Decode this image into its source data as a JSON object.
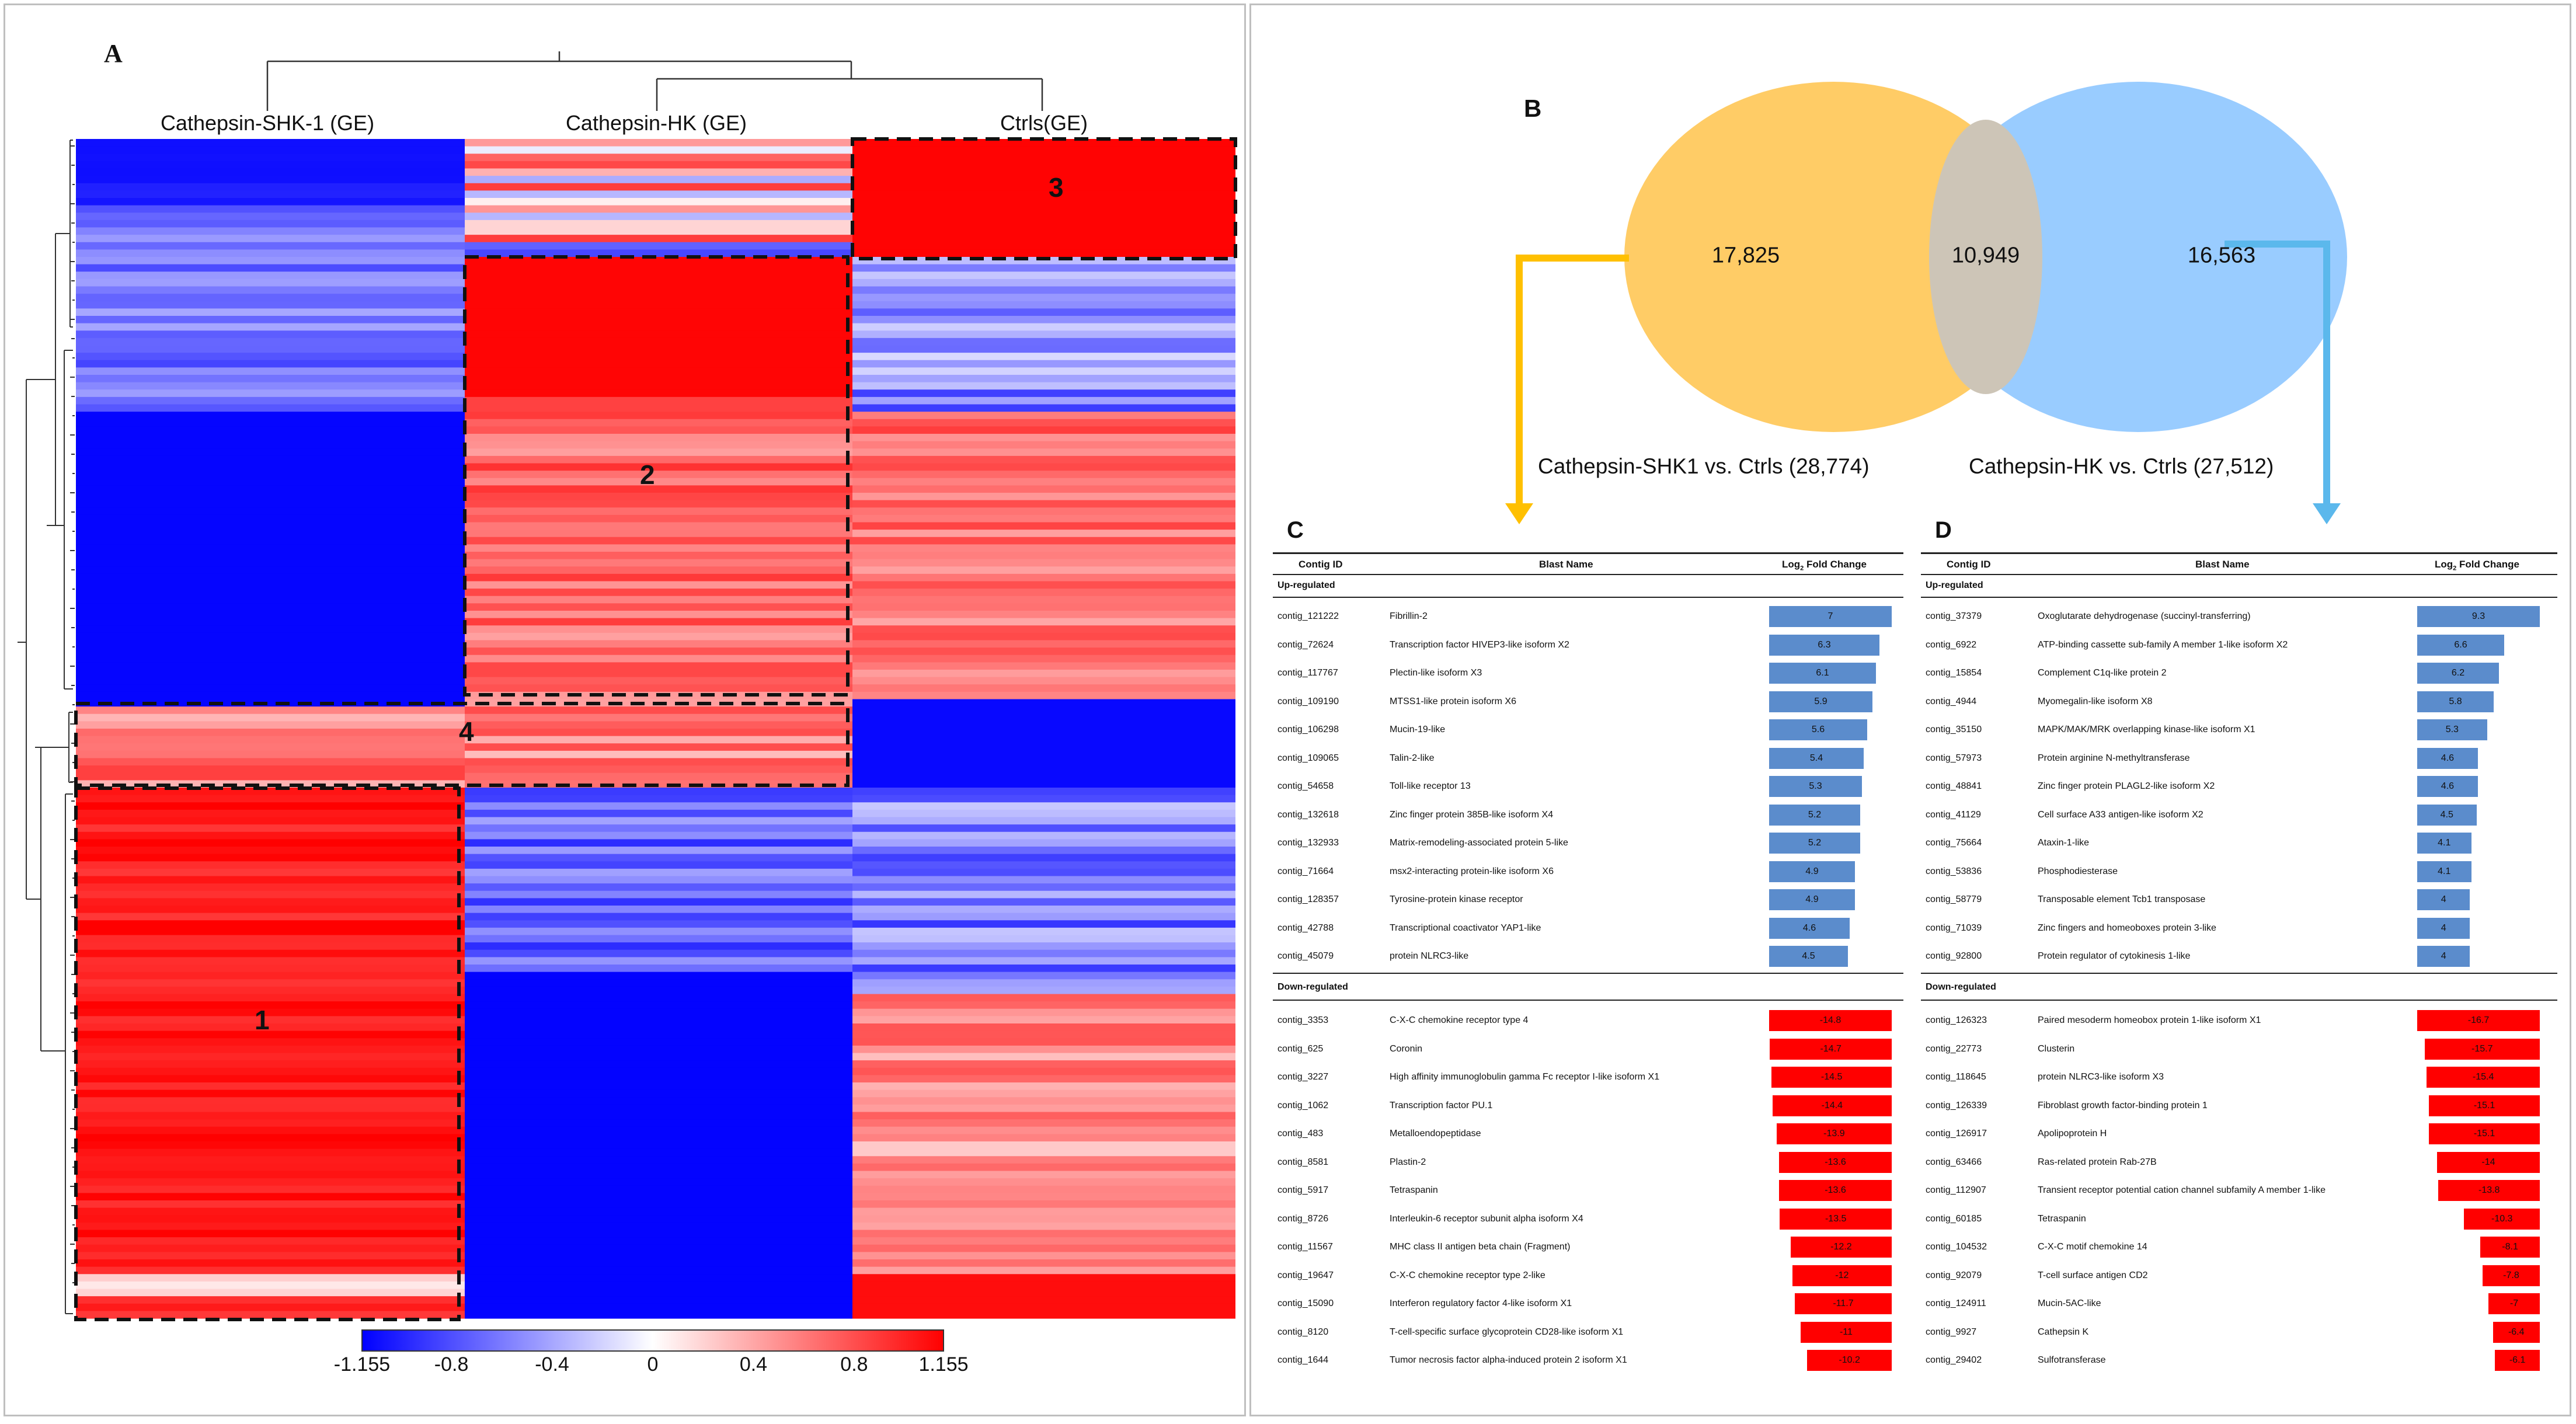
{
  "panel_a": {
    "letter": "A",
    "columns": [
      "Cathepsin-SHK-1 (GE)",
      "Cathepsin-HK (GE)",
      "Ctrls(GE)"
    ],
    "cluster_labels": [
      "1",
      "2",
      "3",
      "4"
    ],
    "colorbar": {
      "ticks": [
        "-1.155",
        "-0.8",
        "-0.4",
        "0",
        "0.4",
        "0.8",
        "1.155"
      ],
      "min": -1.155,
      "max": 1.155,
      "colors": {
        "low": "#0000ff",
        "mid": "#ffffff",
        "high": "#ff0000"
      }
    }
  },
  "panel_b": {
    "letter": "B",
    "left_only": "17,825",
    "overlap": "10,949",
    "right_only": "16,563",
    "left_caption": "Cathepsin-SHK1 vs. Ctrls (28,774)",
    "right_caption": "Cathepsin-HK vs. Ctrls (27,512)",
    "colors": {
      "left": "#ffcc66",
      "right": "#99ccff",
      "overlap": "#cdc5b7",
      "left_arrow": "#ffc000",
      "right_arrow": "#5bb8ec"
    }
  },
  "table_c": {
    "letter": "C",
    "headers": {
      "id": "Contig ID",
      "name": "Blast Name",
      "fc": "Log",
      "fc_sub": "2",
      "fc_rest": " Fold Change"
    },
    "up_label": "Up-regulated",
    "down_label": "Down-regulated",
    "up": [
      {
        "id": "contig_121222",
        "name": "Fibrillin-2",
        "fc": "7"
      },
      {
        "id": "contig_72624",
        "name": "Transcription factor HIVEP3-like isoform X2",
        "fc": "6.3"
      },
      {
        "id": "contig_117767",
        "name": "Plectin-like isoform X3",
        "fc": "6.1"
      },
      {
        "id": "contig_109190",
        "name": "MTSS1-like protein isoform X6",
        "fc": "5.9"
      },
      {
        "id": "contig_106298",
        "name": "Mucin-19-like",
        "fc": "5.6"
      },
      {
        "id": "contig_109065",
        "name": "Talin-2-like",
        "fc": "5.4"
      },
      {
        "id": "contig_54658",
        "name": "Toll-like receptor 13",
        "fc": "5.3"
      },
      {
        "id": "contig_132618",
        "name": "Zinc finger protein 385B-like isoform X4",
        "fc": "5.2"
      },
      {
        "id": "contig_132933",
        "name": "Matrix-remodeling-associated protein 5-like",
        "fc": "5.2"
      },
      {
        "id": "contig_71664",
        "name": "msx2-interacting protein-like isoform X6",
        "fc": "4.9"
      },
      {
        "id": "contig_128357",
        "name": "Tyrosine-protein kinase receptor",
        "fc": "4.9"
      },
      {
        "id": "contig_42788",
        "name": "Transcriptional coactivator YAP1-like",
        "fc": "4.6"
      },
      {
        "id": "contig_45079",
        "name": "protein NLRC3-like",
        "fc": "4.5"
      }
    ],
    "down": [
      {
        "id": "contig_3353",
        "name": "C-X-C chemokine receptor type 4",
        "fc": "-14.8"
      },
      {
        "id": "contig_625",
        "name": "Coronin",
        "fc": "-14.7"
      },
      {
        "id": "contig_3227",
        "name": "High affinity immunoglobulin gamma Fc receptor I-like isoform X1",
        "fc": "-14.5"
      },
      {
        "id": "contig_1062",
        "name": "Transcription factor PU.1",
        "fc": "-14.4"
      },
      {
        "id": "contig_483",
        "name": "Metalloendopeptidase",
        "fc": "-13.9"
      },
      {
        "id": "contig_8581",
        "name": "Plastin-2",
        "fc": "-13.6"
      },
      {
        "id": "contig_5917",
        "name": "Tetraspanin",
        "fc": "-13.6"
      },
      {
        "id": "contig_8726",
        "name": "Interleukin-6 receptor subunit alpha isoform X4",
        "fc": "-13.5"
      },
      {
        "id": "contig_11567",
        "name": "MHC class II antigen beta chain (Fragment)",
        "fc": "-12.2"
      },
      {
        "id": "contig_19647",
        "name": "C-X-C chemokine receptor type 2-like",
        "fc": "-12"
      },
      {
        "id": "contig_15090",
        "name": "Interferon regulatory factor 4-like isoform X1",
        "fc": "-11.7"
      },
      {
        "id": "contig_8120",
        "name": "T-cell-specific surface glycoprotein CD28-like isoform X1",
        "fc": "-11"
      },
      {
        "id": "contig_1644",
        "name": "Tumor necrosis factor alpha-induced protein 2 isoform X1",
        "fc": "-10.2"
      }
    ]
  },
  "table_d": {
    "letter": "D",
    "headers": {
      "id": "Contig ID",
      "name": "Blast Name",
      "fc": "Log",
      "fc_sub": "2",
      "fc_rest": " Fold Change"
    },
    "up_label": "Up-regulated",
    "down_label": "Down-regulated",
    "up": [
      {
        "id": "contig_37379",
        "name": "Oxoglutarate dehydrogenase (succinyl-transferring)",
        "fc": "9.3"
      },
      {
        "id": "contig_6922",
        "name": "ATP-binding cassette sub-family A member 1-like isoform X2",
        "fc": "6.6"
      },
      {
        "id": "contig_15854",
        "name": "Complement C1q-like protein 2",
        "fc": "6.2"
      },
      {
        "id": "contig_4944",
        "name": "Myomegalin-like isoform X8",
        "fc": "5.8"
      },
      {
        "id": "contig_35150",
        "name": "MAPK/MAK/MRK overlapping kinase-like isoform X1",
        "fc": "5.3"
      },
      {
        "id": "contig_57973",
        "name": "Protein arginine N-methyltransferase",
        "fc": "4.6"
      },
      {
        "id": "contig_48841",
        "name": "Zinc finger protein PLAGL2-like isoform X2",
        "fc": "4.6"
      },
      {
        "id": "contig_41129",
        "name": "Cell surface A33 antigen-like isoform X2",
        "fc": "4.5"
      },
      {
        "id": "contig_75664",
        "name": "Ataxin-1-like",
        "fc": "4.1"
      },
      {
        "id": "contig_53836",
        "name": "Phosphodiesterase",
        "fc": "4.1"
      },
      {
        "id": "contig_58779",
        "name": "Transposable element Tcb1 transposase",
        "fc": "4"
      },
      {
        "id": "contig_71039",
        "name": "Zinc fingers and homeoboxes protein 3-like",
        "fc": "4"
      },
      {
        "id": "contig_92800",
        "name": "Protein regulator of cytokinesis 1-like",
        "fc": "4"
      }
    ],
    "down": [
      {
        "id": "contig_126323",
        "name": "Paired mesoderm homeobox protein 1-like isoform X1",
        "fc": "-16.7"
      },
      {
        "id": "contig_22773",
        "name": "Clusterin",
        "fc": "-15.7"
      },
      {
        "id": "contig_118645",
        "name": "protein NLRC3-like isoform X3",
        "fc": "-15.4"
      },
      {
        "id": "contig_126339",
        "name": "Fibroblast growth factor-binding protein 1",
        "fc": "-15.1"
      },
      {
        "id": "contig_126917",
        "name": "Apolipoprotein H",
        "fc": "-15.1"
      },
      {
        "id": "contig_63466",
        "name": "Ras-related protein Rab-27B",
        "fc": "-14"
      },
      {
        "id": "contig_112907",
        "name": "Transient receptor potential cation channel subfamily A member 1-like",
        "fc": "-13.8"
      },
      {
        "id": "contig_60185",
        "name": "Tetraspanin",
        "fc": "-10.3"
      },
      {
        "id": "contig_104532",
        "name": "C-X-C motif chemokine 14",
        "fc": "-8.1"
      },
      {
        "id": "contig_92079",
        "name": "T-cell surface antigen CD2",
        "fc": "-7.8"
      },
      {
        "id": "contig_124911",
        "name": "Mucin-5AC-like",
        "fc": "-7"
      },
      {
        "id": "contig_9927",
        "name": "Cathepsin K",
        "fc": "-6.4"
      },
      {
        "id": "contig_29402",
        "name": "Sulfotransferase",
        "fc": "-6.1"
      }
    ],
    "bar_colors": {
      "up": "#5b8ccc",
      "down": "#ff0000"
    }
  }
}
